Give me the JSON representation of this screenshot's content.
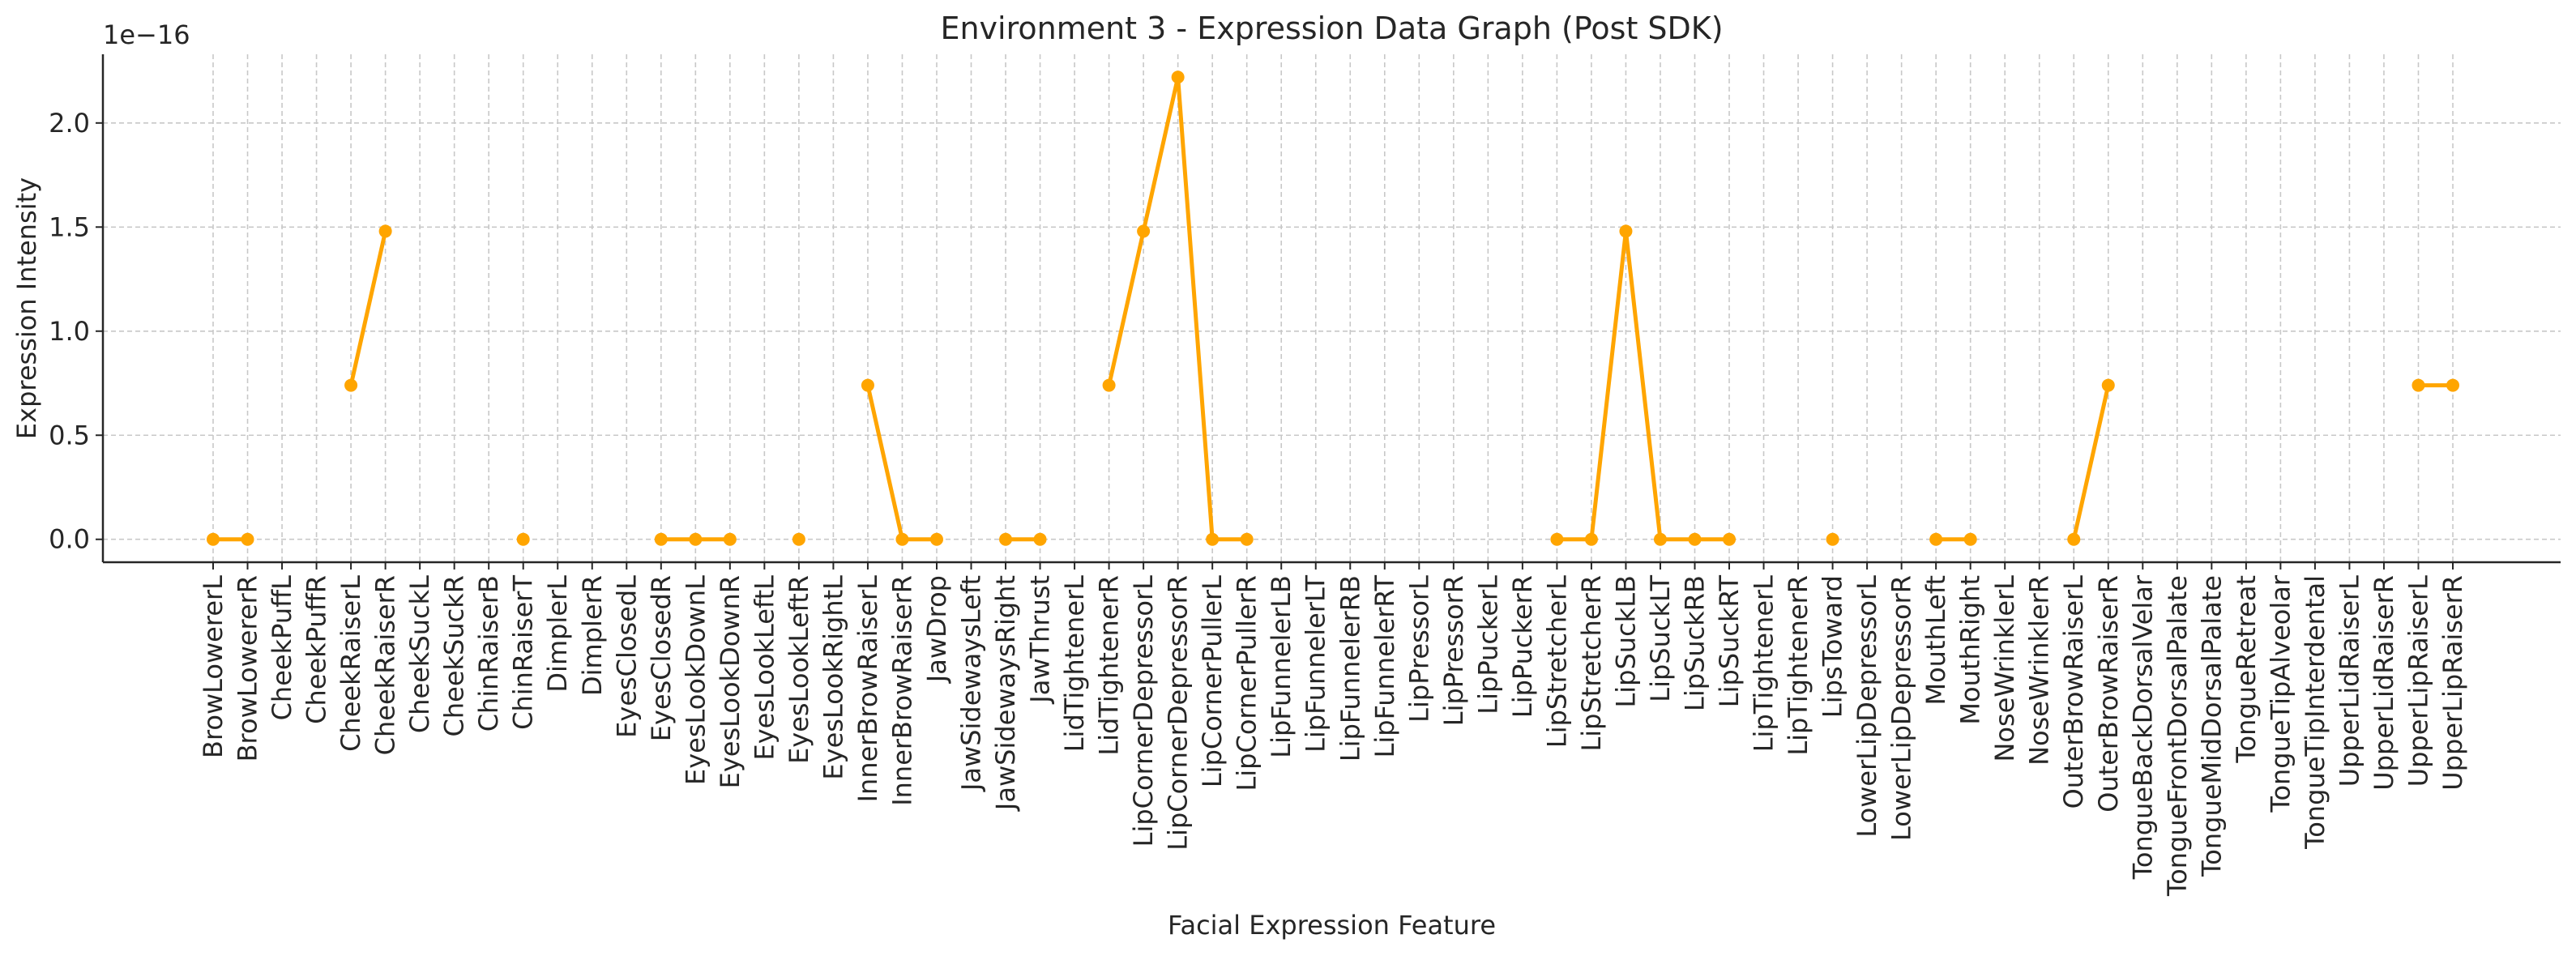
{
  "chart_data": {
    "type": "line",
    "title": "Environment 3 - Expression Data Graph (Post SDK)",
    "xlabel": "Facial Expression Feature",
    "ylabel": "Expression Intensity",
    "y_offset_text": "1e−16",
    "y_scale_exponent": -16,
    "ylim": [
      -0.11,
      2.33
    ],
    "yticks": [
      0.0,
      0.5,
      1.0,
      1.5,
      2.0
    ],
    "ytick_labels": [
      "0.0",
      "0.5",
      "1.0",
      "1.5",
      "2.0"
    ],
    "grid": true,
    "legend": "none",
    "color": "#FFA500",
    "categories": [
      "BrowLowererL",
      "BrowLowererR",
      "CheekPuffL",
      "CheekPuffR",
      "CheekRaiserL",
      "CheekRaiserR",
      "CheekSuckL",
      "CheekSuckR",
      "ChinRaiserB",
      "ChinRaiserT",
      "DimplerL",
      "DimplerR",
      "EyesClosedL",
      "EyesClosedR",
      "EyesLookDownL",
      "EyesLookDownR",
      "EyesLookLeftL",
      "EyesLookLeftR",
      "EyesLookRightL",
      "InnerBrowRaiserL",
      "InnerBrowRaiserR",
      "JawDrop",
      "JawSidewaysLeft",
      "JawSidewaysRight",
      "JawThrust",
      "LidTightenerL",
      "LidTightenerR",
      "LipCornerDepressorL",
      "LipCornerDepressorR",
      "LipCornerPullerL",
      "LipCornerPullerR",
      "LipFunnelerLB",
      "LipFunnelerLT",
      "LipFunnelerRB",
      "LipFunnelerRT",
      "LipPressorL",
      "LipPressorR",
      "LipPuckerL",
      "LipPuckerR",
      "LipStretcherL",
      "LipStretcherR",
      "LipSuckLB",
      "LipSuckLT",
      "LipSuckRB",
      "LipSuckRT",
      "LipTightenerL",
      "LipTightenerR",
      "LipsToward",
      "LowerLipDepressorL",
      "LowerLipDepressorR",
      "MouthLeft",
      "MouthRight",
      "NoseWrinklerL",
      "NoseWrinklerR",
      "OuterBrowRaiserL",
      "OuterBrowRaiserR",
      "TongueBackDorsalVelar",
      "TongueFrontDorsalPalate",
      "TongueMidDorsalPalate",
      "TongueRetreat",
      "TongueTipAlveolar",
      "TongueTipInterdental",
      "UpperLidRaiserL",
      "UpperLidRaiserR",
      "UpperLipRaiserL",
      "UpperLipRaiserR"
    ],
    "values": [
      0.0,
      0.0,
      null,
      null,
      0.74,
      1.48,
      null,
      null,
      null,
      0.0,
      null,
      null,
      null,
      0.0,
      0.0,
      0.0,
      null,
      0.0,
      null,
      0.74,
      0.0,
      0.0,
      null,
      0.0,
      0.0,
      null,
      0.74,
      1.48,
      2.22,
      0.0,
      0.0,
      null,
      null,
      null,
      null,
      null,
      null,
      null,
      null,
      0.0,
      0.0,
      1.48,
      0.0,
      0.0,
      0.0,
      null,
      null,
      0.0,
      null,
      null,
      0.0,
      0.0,
      null,
      null,
      0.0,
      0.74,
      null,
      null,
      null,
      null,
      null,
      null,
      null,
      null,
      0.74,
      0.74
    ]
  }
}
